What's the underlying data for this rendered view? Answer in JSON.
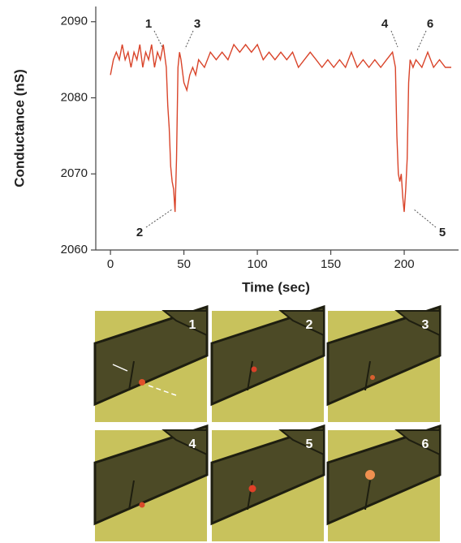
{
  "chart_data": {
    "type": "line",
    "x_label": "Time (sec)",
    "y_label": "Conductance (nS)",
    "xlim": [
      -10,
      237
    ],
    "ylim": [
      2060,
      2092
    ],
    "xticks": [
      0,
      50,
      100,
      150,
      200
    ],
    "yticks": [
      2060,
      2070,
      2080,
      2090
    ],
    "x": [
      0,
      2,
      4,
      6,
      8,
      10,
      12,
      14,
      16,
      18,
      20,
      22,
      24,
      26,
      28,
      30,
      32,
      34,
      36,
      38,
      39,
      40,
      41,
      42,
      43,
      44,
      45,
      46,
      47,
      48,
      50,
      52,
      54,
      56,
      58,
      60,
      64,
      68,
      72,
      76,
      80,
      84,
      88,
      92,
      96,
      100,
      104,
      108,
      112,
      116,
      120,
      124,
      128,
      132,
      136,
      140,
      144,
      148,
      152,
      156,
      160,
      164,
      168,
      172,
      176,
      180,
      184,
      188,
      192,
      194,
      195,
      196,
      197,
      198,
      199,
      200,
      201,
      202,
      203,
      204,
      206,
      208,
      212,
      216,
      220,
      224,
      228,
      232
    ],
    "series": [
      {
        "color": "#d9442a",
        "values": [
          2083,
          2085,
          2086,
          2085,
          2087,
          2085,
          2086,
          2084,
          2086,
          2085,
          2087,
          2084,
          2086,
          2085,
          2087,
          2084,
          2086,
          2085,
          2087,
          2084,
          2079,
          2076,
          2071,
          2069,
          2068,
          2065,
          2072,
          2084,
          2086,
          2085,
          2082,
          2081,
          2083,
          2084,
          2083,
          2085,
          2084,
          2086,
          2085,
          2086,
          2085,
          2087,
          2086,
          2087,
          2086,
          2087,
          2085,
          2086,
          2085,
          2086,
          2085,
          2086,
          2084,
          2085,
          2086,
          2085,
          2084,
          2085,
          2084,
          2085,
          2084,
          2086,
          2084,
          2085,
          2084,
          2085,
          2084,
          2085,
          2086,
          2084,
          2075,
          2070,
          2069,
          2070,
          2067,
          2065,
          2068,
          2072,
          2082,
          2085,
          2084,
          2085,
          2084,
          2086,
          2084,
          2085,
          2084,
          2084
        ]
      }
    ],
    "annotations": [
      "1",
      "2",
      "3",
      "4",
      "5",
      "6"
    ]
  },
  "panels": {
    "labels": [
      "1",
      "2",
      "3",
      "4",
      "5",
      "6"
    ]
  }
}
